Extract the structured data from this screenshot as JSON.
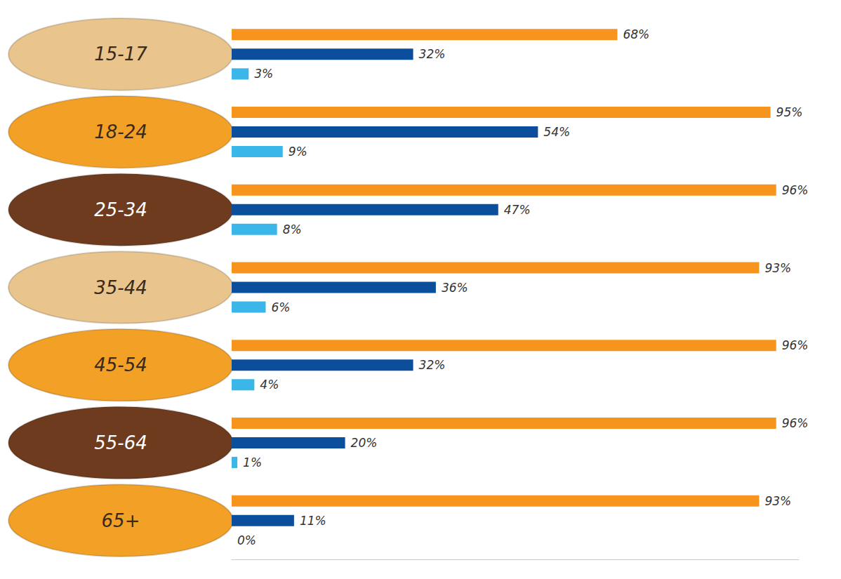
{
  "chart_data": {
    "type": "bar",
    "orientation": "horizontal",
    "categories": [
      "15-17",
      "18-24",
      "25-34",
      "35-44",
      "45-54",
      "55-64",
      "65+"
    ],
    "series": [
      {
        "color": "#f7941d",
        "values": [
          68,
          95,
          96,
          93,
          96,
          96,
          93
        ],
        "value_labels": [
          "68%",
          "95%",
          "96%",
          "93%",
          "96%",
          "96%",
          "93%"
        ]
      },
      {
        "color": "#0b4f9c",
        "values": [
          32,
          54,
          47,
          36,
          32,
          20,
          11
        ],
        "value_labels": [
          "32%",
          "54%",
          "47%",
          "36%",
          "32%",
          "20%",
          "11%"
        ]
      },
      {
        "color": "#3ab6e8",
        "values": [
          3,
          9,
          8,
          6,
          4,
          1,
          0
        ],
        "value_labels": [
          "3%",
          "9%",
          "8%",
          "6%",
          "4%",
          "1%",
          "0%"
        ]
      }
    ],
    "xlim": [
      0,
      100
    ],
    "grid": false,
    "tick_labels": false,
    "data_labels": true
  }
}
